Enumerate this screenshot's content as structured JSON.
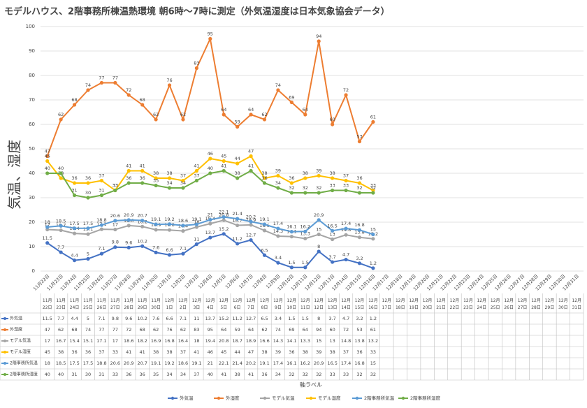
{
  "chart_data": {
    "type": "line",
    "title": "モデルハウス、2階事務所棟温熱環境 朝6時～7時に測定（外気温湿度は日本気象協会データ）",
    "ylabel": "気温、湿度",
    "xlabel": "軸ラベル",
    "categories": [
      "11月22日",
      "11月23日",
      "11月24日",
      "11月25日",
      "11月26日",
      "11月27日",
      "11月28日",
      "11月29日",
      "11月30日",
      "12月1日",
      "12月2日",
      "12月3日",
      "12月4日",
      "12月5日",
      "12月6日",
      "12月7日",
      "12月8日",
      "12月9日",
      "12月10日",
      "12月11日",
      "12月12日",
      "12月13日",
      "12月14日",
      "12月15日",
      "12月16日",
      "12月17日",
      "12月18日",
      "12月19日",
      "12月20日",
      "12月21日",
      "12月22日",
      "12月23日",
      "12月24日",
      "12月25日",
      "12月26日",
      "12月27日",
      "12月28日",
      "12月29日",
      "12月30日",
      "12月31日"
    ],
    "ylim": [
      0,
      100
    ],
    "yticks": [
      0,
      10,
      20,
      30,
      40,
      50,
      60,
      70,
      80,
      90,
      100
    ],
    "grid": true,
    "legend": "bottom",
    "series": [
      {
        "name": "外気温",
        "color": "#4472c4",
        "values": [
          11.5,
          7.7,
          4.4,
          5,
          7.1,
          9.8,
          9.6,
          10.2,
          7.6,
          6.6,
          7.1,
          11,
          13.7,
          15.2,
          11.2,
          12.7,
          6.5,
          3.4,
          1.5,
          1.5,
          8,
          3.7,
          4.7,
          3.2,
          1.2,
          null,
          null,
          null,
          null,
          null,
          null,
          null,
          null,
          null,
          null,
          null,
          null,
          null,
          null,
          null
        ]
      },
      {
        "name": "外湿度",
        "color": "#ed7d31",
        "values": [
          47,
          62,
          68,
          74,
          77,
          77,
          72,
          68,
          62,
          76,
          62,
          83,
          95,
          64,
          59,
          64,
          62,
          74,
          69,
          64,
          94,
          60,
          72,
          53,
          61,
          null,
          null,
          null,
          null,
          null,
          null,
          null,
          null,
          null,
          null,
          null,
          null,
          null,
          null,
          null
        ]
      },
      {
        "name": "モデル気温",
        "color": "#a5a5a5",
        "values": [
          17,
          16.7,
          15.4,
          15.1,
          17.1,
          17,
          18.6,
          18.2,
          16.9,
          16.8,
          16.4,
          18,
          19.4,
          20.8,
          18.7,
          18.9,
          16.6,
          14.3,
          14.1,
          13.3,
          15,
          13,
          14.8,
          13.8,
          13.2,
          null,
          null,
          null,
          null,
          null,
          null,
          null,
          null,
          null,
          null,
          null,
          null,
          null,
          null,
          null
        ]
      },
      {
        "name": "モデル湿度",
        "color": "#ffc000",
        "values": [
          45,
          38,
          36,
          36,
          37,
          33,
          41,
          41,
          38,
          38,
          37,
          41,
          46,
          45,
          44,
          47,
          38,
          39,
          36,
          38,
          39,
          38,
          37,
          36,
          33,
          null,
          null,
          null,
          null,
          null,
          null,
          null,
          null,
          null,
          null,
          null,
          null,
          null,
          null,
          null
        ]
      },
      {
        "name": "2階事務所気温",
        "color": "#5b9bd5",
        "values": [
          18,
          18.5,
          17.5,
          17.5,
          18.8,
          20.6,
          20.9,
          20.7,
          19.1,
          19.2,
          18.6,
          19.1,
          21,
          22.1,
          21.4,
          20.2,
          19.1,
          17.4,
          16.1,
          16.2,
          20.9,
          16.5,
          17.4,
          16.8,
          15,
          null,
          null,
          null,
          null,
          null,
          null,
          null,
          null,
          null,
          null,
          null,
          null,
          null,
          null,
          null
        ]
      },
      {
        "name": "2階事務所湿度",
        "color": "#70ad47",
        "values": [
          40,
          40,
          31,
          30,
          31,
          33,
          36,
          36,
          35,
          34,
          34,
          37,
          40,
          41,
          38,
          41,
          36,
          34,
          32,
          32,
          32,
          33,
          33,
          32,
          32,
          null,
          null,
          null,
          null,
          null,
          null,
          null,
          null,
          null,
          null,
          null,
          null,
          null,
          null,
          null
        ]
      }
    ]
  }
}
